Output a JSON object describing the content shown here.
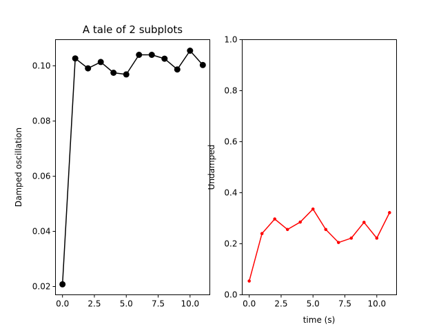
{
  "chart_data": [
    {
      "type": "line",
      "title": "A tale of 2 subplots",
      "xlabel": "",
      "ylabel": "Damped oscillation",
      "xlim": [
        -0.55,
        11.55
      ],
      "ylim": [
        0.017,
        0.1095
      ],
      "xticks": [
        0,
        2.5,
        5,
        7.5,
        10
      ],
      "xtick_labels": [
        "0.0",
        "2.5",
        "5.0",
        "7.5",
        "10.0"
      ],
      "yticks": [
        0.02,
        0.04,
        0.06,
        0.08,
        0.1
      ],
      "ytick_labels": [
        "0.02",
        "0.04",
        "0.06",
        "0.08",
        "0.10"
      ],
      "grid": false,
      "series": [
        {
          "color": "#000000",
          "marker": "large-circle",
          "x": [
            0,
            1,
            2,
            3,
            4,
            5,
            6,
            7,
            8,
            9,
            10,
            11
          ],
          "values": [
            0.0208,
            0.1027,
            0.0991,
            0.1014,
            0.0975,
            0.0969,
            0.104,
            0.104,
            0.1026,
            0.0987,
            0.1055,
            0.1003
          ]
        }
      ]
    },
    {
      "type": "line",
      "title": "",
      "xlabel": "time (s)",
      "ylabel": "Undamped",
      "xlim": [
        -0.55,
        11.55
      ],
      "ylim": [
        0.0,
        1.0
      ],
      "xticks": [
        0,
        2.5,
        5,
        7.5,
        10
      ],
      "xtick_labels": [
        "0.0",
        "2.5",
        "5.0",
        "7.5",
        "10.0"
      ],
      "yticks": [
        0.0,
        0.2,
        0.4,
        0.6,
        0.8,
        1.0
      ],
      "ytick_labels": [
        "0.0",
        "0.2",
        "0.4",
        "0.6",
        "0.8",
        "1.0"
      ],
      "grid": false,
      "series": [
        {
          "color": "#ff0000",
          "marker": "small-dot",
          "x": [
            0,
            1,
            2,
            3,
            4,
            5,
            6,
            7,
            8,
            9,
            10,
            11
          ],
          "values": [
            0.054,
            0.24,
            0.297,
            0.256,
            0.285,
            0.336,
            0.256,
            0.205,
            0.222,
            0.284,
            0.222,
            0.322
          ]
        }
      ]
    }
  ]
}
